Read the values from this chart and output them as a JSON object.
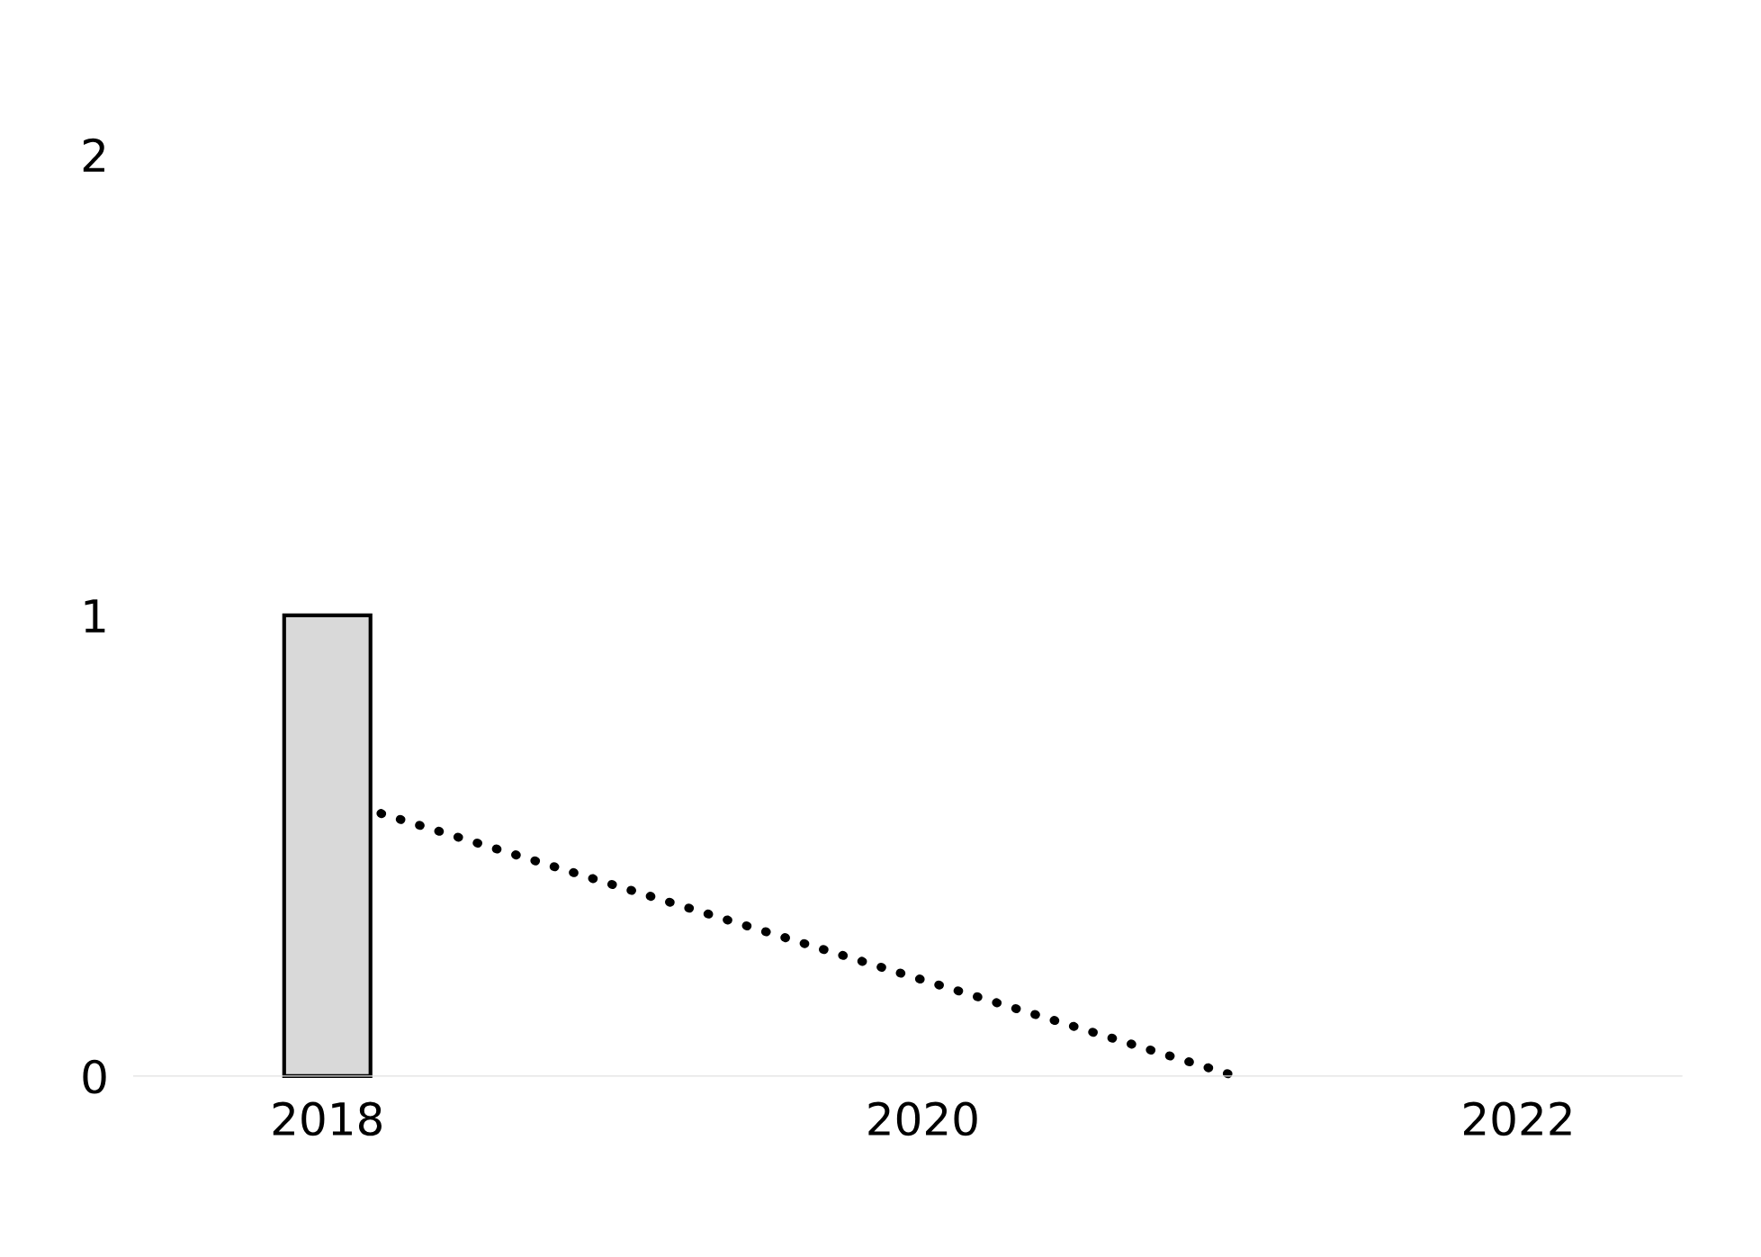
{
  "chart_data": {
    "type": "bar",
    "series": [
      {
        "color": "#d9d9d9",
        "x": [
          2018
        ],
        "values": [
          1
        ]
      },
      {
        "type": "line",
        "color": "#000000",
        "line_style": "dotted",
        "x": [
          2018.18,
          2021.05
        ],
        "values": [
          0.57,
          0.0
        ]
      }
    ],
    "xlim": [
      2017.35,
      2022.55
    ],
    "xticks": [
      2018,
      2020,
      2022
    ],
    "ylim": [
      0,
      2
    ],
    "yticks": [
      0,
      1,
      2
    ],
    "grid": false,
    "legend": false
  }
}
